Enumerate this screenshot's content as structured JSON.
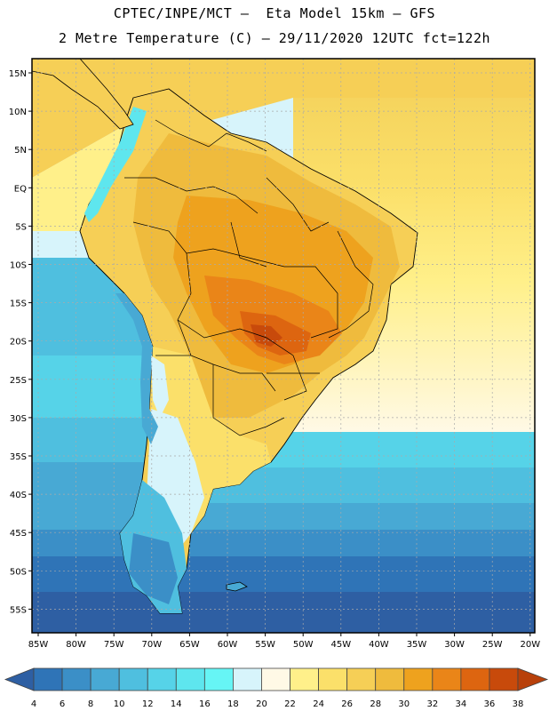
{
  "header": {
    "line1": "CPTEC/INPE/MCT –  Eta Model 15km – GFS",
    "line2": "2 Metre Temperature (C) – 29/11/2020 12UTC fct=122h"
  },
  "map": {
    "lat_labels": [
      "15N",
      "10N",
      "5N",
      "EQ",
      "5S",
      "10S",
      "15S",
      "20S",
      "25S",
      "30S",
      "35S",
      "40S",
      "45S",
      "50S",
      "55S"
    ],
    "lon_labels": [
      "85W",
      "80W",
      "75W",
      "70W",
      "65W",
      "60W",
      "55W",
      "50W",
      "45W",
      "40W",
      "35W",
      "30W",
      "25W",
      "20W"
    ]
  },
  "colorbar": {
    "labels": [
      "4",
      "6",
      "8",
      "10",
      "12",
      "14",
      "16",
      "18",
      "20",
      "22",
      "24",
      "26",
      "28",
      "30",
      "32",
      "34",
      "36",
      "38"
    ],
    "colors": [
      "#2e5fa3",
      "#2f74b7",
      "#3b8fc7",
      "#48a9d4",
      "#4fbfdf",
      "#56d3e8",
      "#5ee6ee",
      "#66f5f5",
      "#d7f4fb",
      "#fff9e6",
      "#fff08a",
      "#fbe06a",
      "#f6cf56",
      "#efbb3d",
      "#eea21e",
      "#ea8518",
      "#dd6510",
      "#c84a0b",
      "#b8400a"
    ]
  }
}
